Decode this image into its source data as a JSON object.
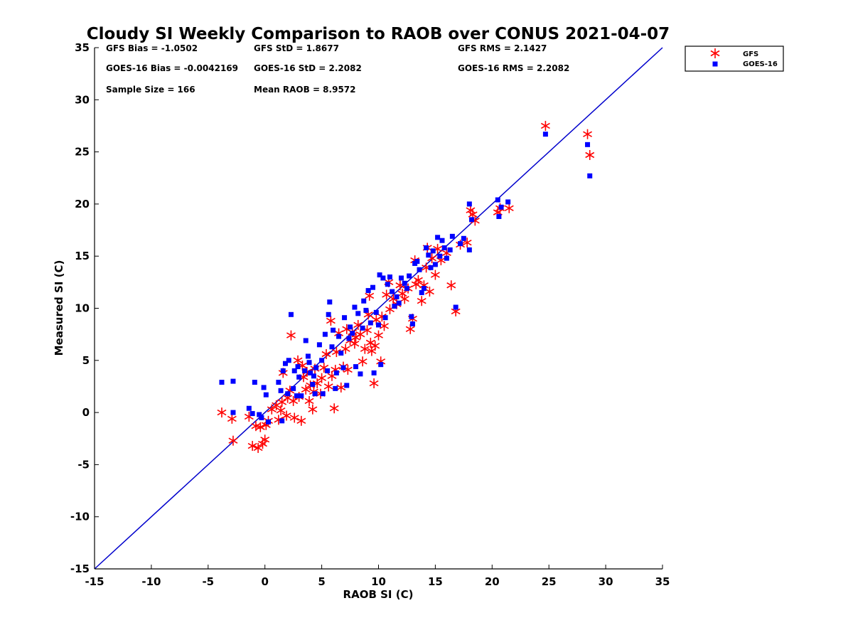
{
  "chart_data": {
    "type": "scatter",
    "title": "Cloudy SI Weekly Comparison to RAOB over CONUS 2021-04-07",
    "xlabel": "RAOB SI (C)",
    "ylabel": "Measured SI (C)",
    "xlim": [
      -15,
      35
    ],
    "ylim": [
      -15,
      35
    ],
    "xticks": [
      "-15",
      "-10",
      "-5",
      "0",
      "5",
      "10",
      "15",
      "20",
      "25",
      "30",
      "35"
    ],
    "yticks": [
      "-15",
      "-10",
      "-5",
      "0",
      "5",
      "10",
      "15",
      "20",
      "25",
      "30",
      "35"
    ],
    "reference_line": "1:1",
    "stats": [
      "GFS Bias = -1.0502",
      "GFS StD = 1.8677",
      "GFS RMS = 2.1427",
      "GOES-16 Bias = -0.0042169",
      "GOES-16 StD = 2.2082",
      "GOES-16 RMS = 2.2082",
      "Sample Size = 166",
      "Mean RAOB = 8.9572"
    ],
    "legend": {
      "position": "top-right outside",
      "entries": [
        "GFS",
        "GOES-16"
      ]
    },
    "series": [
      {
        "name": "GFS",
        "marker": "asterisk",
        "color": "#ff0000",
        "points": [
          [
            -3.8,
            0
          ],
          [
            -2.9,
            -0.6
          ],
          [
            -2.8,
            -2.7
          ],
          [
            -1.4,
            -0.4
          ],
          [
            -1.1,
            -3.2
          ],
          [
            -0.8,
            -1.3
          ],
          [
            -0.6,
            -3.4
          ],
          [
            -0.4,
            -1.4
          ],
          [
            -0.2,
            -3
          ],
          [
            0,
            -2.6
          ],
          [
            0.1,
            -1.2
          ],
          [
            0.3,
            -0.8
          ],
          [
            0.6,
            0.3
          ],
          [
            1,
            0.7
          ],
          [
            1.2,
            -0.7
          ],
          [
            1.4,
            0.2
          ],
          [
            1.5,
            1
          ],
          [
            1.6,
            3.8
          ],
          [
            1.9,
            -0.3
          ],
          [
            2,
            1.4
          ],
          [
            2.2,
            2.1
          ],
          [
            2.3,
            7.4
          ],
          [
            2.5,
            1.1
          ],
          [
            2.6,
            -0.5
          ],
          [
            2.9,
            5
          ],
          [
            3,
            1.5
          ],
          [
            3.2,
            -0.8
          ],
          [
            3.3,
            4.5
          ],
          [
            3.4,
            3.4
          ],
          [
            3.6,
            2.2
          ],
          [
            3.7,
            3.9
          ],
          [
            3.9,
            1.1
          ],
          [
            4,
            2.6
          ],
          [
            4.2,
            0.3
          ],
          [
            4.3,
            2
          ],
          [
            4.4,
            4.2
          ],
          [
            4.6,
            2.8
          ],
          [
            4.9,
            1.8
          ],
          [
            5,
            3.3
          ],
          [
            5.2,
            4.3
          ],
          [
            5.4,
            5.6
          ],
          [
            5.6,
            2.5
          ],
          [
            5.8,
            8.8
          ],
          [
            5.9,
            3.5
          ],
          [
            6.1,
            0.4
          ],
          [
            6.2,
            4.1
          ],
          [
            6.3,
            5.8
          ],
          [
            6.5,
            7.6
          ],
          [
            6.7,
            2.4
          ],
          [
            6.9,
            4.4
          ],
          [
            7.1,
            6.1
          ],
          [
            7.2,
            8
          ],
          [
            7.3,
            4.1
          ],
          [
            7.5,
            6.9
          ],
          [
            7.7,
            7.7
          ],
          [
            7.9,
            6.6
          ],
          [
            8,
            7.2
          ],
          [
            8.2,
            8.4
          ],
          [
            8.4,
            7.5
          ],
          [
            8.6,
            4.9
          ],
          [
            8.8,
            6.1
          ],
          [
            9,
            7.9
          ],
          [
            9.1,
            9.4
          ],
          [
            9.2,
            11.2
          ],
          [
            9.3,
            6.7
          ],
          [
            9.4,
            5.9
          ],
          [
            9.6,
            2.8
          ],
          [
            9.7,
            6.4
          ],
          [
            9.8,
            8.9
          ],
          [
            10,
            7.4
          ],
          [
            10.2,
            4.9
          ],
          [
            10.3,
            9.2
          ],
          [
            10.5,
            8.3
          ],
          [
            10.7,
            11.3
          ],
          [
            10.9,
            12.5
          ],
          [
            11,
            9.9
          ],
          [
            11.3,
            10.9
          ],
          [
            11.6,
            10.4
          ],
          [
            11.9,
            12.2
          ],
          [
            12.1,
            11.4
          ],
          [
            12.3,
            10.9
          ],
          [
            12.6,
            11.9
          ],
          [
            12.8,
            8
          ],
          [
            13,
            9
          ],
          [
            13.2,
            14.6
          ],
          [
            13.3,
            12.3
          ],
          [
            13.5,
            12.7
          ],
          [
            13.8,
            10.7
          ],
          [
            14,
            12.2
          ],
          [
            14.2,
            13.9
          ],
          [
            14.3,
            15.8
          ],
          [
            14.5,
            11.6
          ],
          [
            14.7,
            14.8
          ],
          [
            15,
            13.2
          ],
          [
            15.2,
            15.7
          ],
          [
            15.5,
            14.6
          ],
          [
            16,
            15.3
          ],
          [
            16.4,
            12.2
          ],
          [
            16.8,
            9.7
          ],
          [
            17.2,
            16.1
          ],
          [
            17.8,
            16.3
          ],
          [
            18.1,
            19.4
          ],
          [
            18.3,
            19
          ],
          [
            18.5,
            18.4
          ],
          [
            20.5,
            19.2
          ],
          [
            20.7,
            19.6
          ],
          [
            21.5,
            19.6
          ],
          [
            24.7,
            27.5
          ],
          [
            28.4,
            26.7
          ],
          [
            28.6,
            24.7
          ]
        ]
      },
      {
        "name": "GOES-16",
        "marker": "square",
        "color": "#0000ff",
        "points": [
          [
            -3.8,
            2.9
          ],
          [
            -2.8,
            3
          ],
          [
            -2.8,
            0
          ],
          [
            -1.4,
            0.4
          ],
          [
            -1.1,
            -0.1
          ],
          [
            -0.9,
            2.9
          ],
          [
            -0.5,
            -0.2
          ],
          [
            -0.3,
            -0.5
          ],
          [
            -0.1,
            2.4
          ],
          [
            0.1,
            1.7
          ],
          [
            0.3,
            -0.9
          ],
          [
            1.2,
            2.9
          ],
          [
            1.4,
            2.1
          ],
          [
            1.5,
            -0.8
          ],
          [
            1.6,
            4
          ],
          [
            1.8,
            4.7
          ],
          [
            2,
            1.8
          ],
          [
            2.1,
            5
          ],
          [
            2.3,
            9.4
          ],
          [
            2.5,
            2.3
          ],
          [
            2.6,
            4
          ],
          [
            2.8,
            1.6
          ],
          [
            2.9,
            4.4
          ],
          [
            3,
            3.4
          ],
          [
            3.2,
            1.6
          ],
          [
            3.5,
            4
          ],
          [
            3.6,
            6.9
          ],
          [
            3.8,
            5.4
          ],
          [
            3.9,
            4.8
          ],
          [
            4,
            3.8
          ],
          [
            4.2,
            2.7
          ],
          [
            4.3,
            3.5
          ],
          [
            4.4,
            1.8
          ],
          [
            4.5,
            4.3
          ],
          [
            4.8,
            6.5
          ],
          [
            5,
            5
          ],
          [
            5.1,
            1.8
          ],
          [
            5.3,
            7.5
          ],
          [
            5.5,
            4
          ],
          [
            5.6,
            9.4
          ],
          [
            5.7,
            10.6
          ],
          [
            5.9,
            6.3
          ],
          [
            6,
            7.9
          ],
          [
            6.2,
            2.3
          ],
          [
            6.3,
            3.8
          ],
          [
            6.5,
            7.3
          ],
          [
            6.7,
            5.7
          ],
          [
            6.9,
            4.3
          ],
          [
            7,
            9.1
          ],
          [
            7.2,
            2.6
          ],
          [
            7.4,
            7.1
          ],
          [
            7.5,
            8.2
          ],
          [
            7.7,
            7.6
          ],
          [
            7.9,
            10.1
          ],
          [
            8,
            4.4
          ],
          [
            8.2,
            9.5
          ],
          [
            8.4,
            3.7
          ],
          [
            8.6,
            8.1
          ],
          [
            8.7,
            10.7
          ],
          [
            8.9,
            9.8
          ],
          [
            9.1,
            11.7
          ],
          [
            9.3,
            8.6
          ],
          [
            9.5,
            12
          ],
          [
            9.6,
            3.8
          ],
          [
            9.8,
            9.6
          ],
          [
            10,
            8.4
          ],
          [
            10.1,
            13.2
          ],
          [
            10.2,
            4.6
          ],
          [
            10.4,
            12.9
          ],
          [
            10.6,
            9.1
          ],
          [
            10.8,
            12.3
          ],
          [
            11,
            13
          ],
          [
            11.2,
            11.6
          ],
          [
            11.4,
            10.2
          ],
          [
            11.6,
            11.1
          ],
          [
            11.8,
            10.5
          ],
          [
            12,
            12.9
          ],
          [
            12.3,
            12.4
          ],
          [
            12.5,
            11.9
          ],
          [
            12.7,
            13.1
          ],
          [
            12.9,
            9.2
          ],
          [
            13,
            8.5
          ],
          [
            13.2,
            14.3
          ],
          [
            13.4,
            14.5
          ],
          [
            13.6,
            13.7
          ],
          [
            13.8,
            11.5
          ],
          [
            14,
            11.9
          ],
          [
            14.2,
            15.8
          ],
          [
            14.4,
            15.1
          ],
          [
            14.6,
            13.9
          ],
          [
            14.8,
            15.5
          ],
          [
            15,
            14.2
          ],
          [
            15.2,
            16.8
          ],
          [
            15.4,
            15
          ],
          [
            15.6,
            16.5
          ],
          [
            15.8,
            15.8
          ],
          [
            16,
            14.8
          ],
          [
            16.3,
            15.6
          ],
          [
            16.5,
            16.9
          ],
          [
            16.8,
            10.1
          ],
          [
            17.2,
            16.2
          ],
          [
            17.5,
            16.7
          ],
          [
            18,
            20
          ],
          [
            18,
            15.6
          ],
          [
            18.2,
            18.5
          ],
          [
            20.5,
            20.4
          ],
          [
            20.6,
            18.8
          ],
          [
            20.8,
            19.7
          ],
          [
            21.4,
            20.2
          ],
          [
            24.7,
            26.7
          ],
          [
            28.4,
            25.7
          ],
          [
            28.6,
            22.7
          ]
        ]
      }
    ]
  }
}
